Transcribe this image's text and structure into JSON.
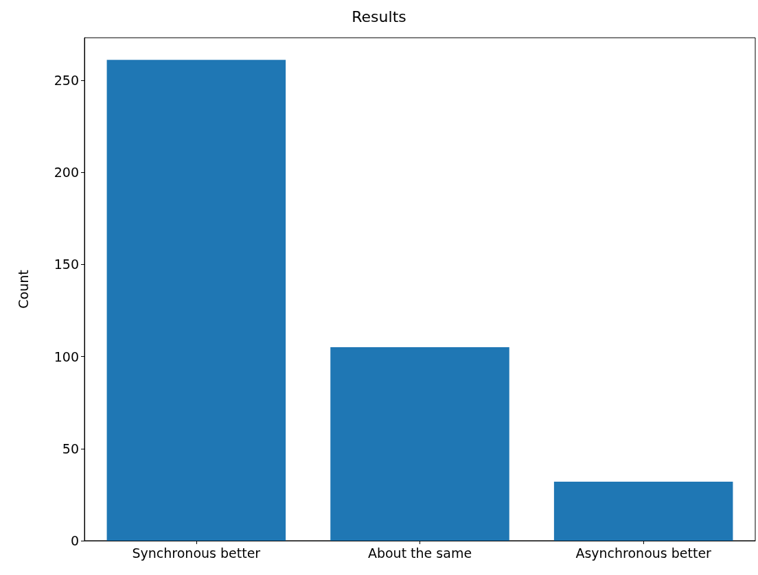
{
  "chart_data": {
    "type": "bar",
    "title": "Results",
    "ylabel": "Count",
    "categories": [
      "Synchronous better",
      "About the same",
      "Asynchronous better"
    ],
    "values": [
      261,
      105,
      32
    ],
    "color": "#1f77b4",
    "ylim": [
      0,
      273
    ],
    "yticks": [
      0,
      50,
      100,
      150,
      200,
      250
    ],
    "grid": false
  }
}
